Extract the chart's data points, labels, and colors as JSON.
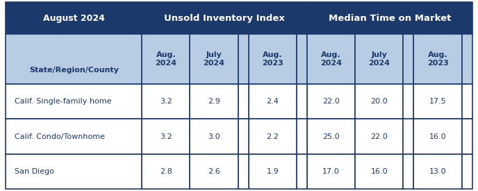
{
  "title_left": "August 2024",
  "title_mid": "Unsold Inventory Index",
  "title_right": "Median Time on Market",
  "subheader_left": "State/Region/County",
  "col_headers_inv": [
    "Aug.\n2024",
    "July\n2024",
    "Aug.\n2023"
  ],
  "col_headers_med": [
    "Aug.\n2024",
    "July\n2024",
    "Aug.\n2023"
  ],
  "rows": [
    [
      "Calif. Single-family home",
      "3.2",
      "2.9",
      "2.4",
      "22.0",
      "20.0",
      "17.5"
    ],
    [
      "Calif. Condo/Townhome",
      "3.2",
      "3.0",
      "2.2",
      "25.0",
      "22.0",
      "16.0"
    ],
    [
      "San Diego",
      "2.8",
      "2.6",
      "1.9",
      "17.0",
      "16.0",
      "13.0"
    ]
  ],
  "header_bg": "#1B3A6B",
  "subheader_bg": "#B8CCE4",
  "row_bg": "#FFFFFF",
  "fig_bg": "#FFFFFF",
  "border_color": "#1B3A6B",
  "header_text_color": "#FFFFFF",
  "subheader_text_color": "#1B3A6B",
  "data_text_color": "#1B3A6B",
  "sep_bg": "#D0DCE8",
  "figsize": [
    6.88,
    2.75
  ],
  "dpi": 100
}
